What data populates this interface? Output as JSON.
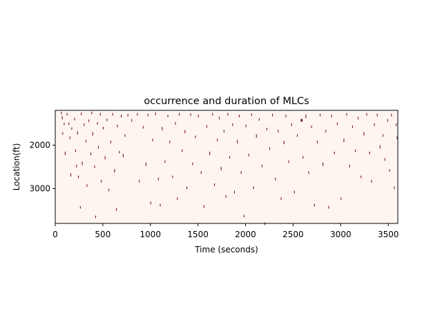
{
  "chart_data": {
    "type": "heatmap",
    "title": "occurrence and duration of MLCs",
    "xlabel": "Time (seconds)",
    "ylabel": "Location(ft)",
    "xlim": [
      0,
      3600
    ],
    "ylim": [
      3800,
      1200
    ],
    "xticks": [
      0,
      500,
      1000,
      1500,
      2000,
      2500,
      3000,
      3500
    ],
    "yticks": [
      2000,
      3000
    ],
    "colors": {
      "background": "#fff5f0",
      "event": "#67000d",
      "axes": "#000000"
    },
    "events": [
      [
        60,
        1230,
        5,
        60
      ],
      [
        70,
        1330,
        5,
        80
      ],
      [
        75,
        1700,
        5,
        60
      ],
      [
        90,
        1480,
        5,
        60
      ],
      [
        100,
        2150,
        5,
        80
      ],
      [
        120,
        1260,
        5,
        60
      ],
      [
        140,
        1480,
        5,
        60
      ],
      [
        150,
        1800,
        5,
        60
      ],
      [
        160,
        2650,
        5,
        70
      ],
      [
        170,
        1590,
        5,
        60
      ],
      [
        200,
        1370,
        5,
        60
      ],
      [
        210,
        2100,
        5,
        60
      ],
      [
        220,
        2450,
        5,
        60
      ],
      [
        230,
        1680,
        5,
        80
      ],
      [
        240,
        2700,
        5,
        60
      ],
      [
        260,
        3400,
        5,
        60
      ],
      [
        270,
        1250,
        5,
        60
      ],
      [
        280,
        2380,
        5,
        80
      ],
      [
        300,
        1500,
        5,
        60
      ],
      [
        320,
        1880,
        5,
        60
      ],
      [
        330,
        2900,
        5,
        60
      ],
      [
        350,
        1410,
        5,
        60
      ],
      [
        370,
        2170,
        5,
        60
      ],
      [
        380,
        1230,
        5,
        60
      ],
      [
        390,
        1700,
        5,
        80
      ],
      [
        410,
        2470,
        5,
        60
      ],
      [
        420,
        3620,
        5,
        60
      ],
      [
        440,
        1470,
        5,
        60
      ],
      [
        450,
        2020,
        5,
        60
      ],
      [
        470,
        1260,
        5,
        60
      ],
      [
        480,
        2800,
        5,
        60
      ],
      [
        500,
        1580,
        5,
        60
      ],
      [
        520,
        2250,
        5,
        80
      ],
      [
        540,
        1390,
        5,
        60
      ],
      [
        560,
        3000,
        5,
        60
      ],
      [
        580,
        1900,
        5,
        60
      ],
      [
        600,
        1260,
        5,
        60
      ],
      [
        620,
        2550,
        5,
        80
      ],
      [
        640,
        3450,
        5,
        60
      ],
      [
        650,
        1530,
        5,
        60
      ],
      [
        670,
        2130,
        5,
        60
      ],
      [
        690,
        1300,
        5,
        60
      ],
      [
        710,
        2200,
        5,
        80
      ],
      [
        730,
        1750,
        5,
        60
      ],
      [
        760,
        1280,
        5,
        60
      ],
      [
        800,
        1400,
        5,
        60
      ],
      [
        860,
        1260,
        5,
        60
      ],
      [
        880,
        2800,
        5,
        60
      ],
      [
        920,
        1560,
        5,
        60
      ],
      [
        950,
        2400,
        5,
        80
      ],
      [
        970,
        1280,
        5,
        60
      ],
      [
        1000,
        3300,
        5,
        60
      ],
      [
        1020,
        1850,
        5,
        60
      ],
      [
        1050,
        1250,
        5,
        60
      ],
      [
        1080,
        2750,
        5,
        60
      ],
      [
        1100,
        3350,
        5,
        60
      ],
      [
        1120,
        1580,
        5,
        80
      ],
      [
        1150,
        2350,
        5,
        60
      ],
      [
        1180,
        1300,
        5,
        60
      ],
      [
        1200,
        1900,
        5,
        60
      ],
      [
        1230,
        2700,
        5,
        60
      ],
      [
        1260,
        1470,
        5,
        60
      ],
      [
        1280,
        3200,
        5,
        60
      ],
      [
        1300,
        1260,
        5,
        60
      ],
      [
        1330,
        2100,
        5,
        60
      ],
      [
        1360,
        1650,
        5,
        80
      ],
      [
        1380,
        2950,
        5,
        60
      ],
      [
        1420,
        1270,
        5,
        60
      ],
      [
        1440,
        2400,
        5,
        60
      ],
      [
        1470,
        1780,
        5,
        60
      ],
      [
        1500,
        1300,
        5,
        60
      ],
      [
        1530,
        2600,
        5,
        60
      ],
      [
        1560,
        3380,
        5,
        60
      ],
      [
        1590,
        1540,
        5,
        60
      ],
      [
        1620,
        2150,
        5,
        80
      ],
      [
        1650,
        1260,
        5,
        60
      ],
      [
        1670,
        2880,
        5,
        60
      ],
      [
        1700,
        1850,
        5,
        60
      ],
      [
        1720,
        1350,
        5,
        60
      ],
      [
        1740,
        2500,
        5,
        80
      ],
      [
        1770,
        1650,
        5,
        60
      ],
      [
        1790,
        3150,
        5,
        60
      ],
      [
        1810,
        1260,
        5,
        60
      ],
      [
        1830,
        2250,
        5,
        60
      ],
      [
        1860,
        1500,
        5,
        60
      ],
      [
        1880,
        3050,
        5,
        60
      ],
      [
        1910,
        1880,
        5,
        80
      ],
      [
        1930,
        1300,
        5,
        60
      ],
      [
        1950,
        2600,
        5,
        60
      ],
      [
        1980,
        3600,
        5,
        60
      ],
      [
        2000,
        1530,
        5,
        60
      ],
      [
        2030,
        2200,
        5,
        60
      ],
      [
        2060,
        1270,
        5,
        60
      ],
      [
        2080,
        2950,
        5,
        60
      ],
      [
        2110,
        1750,
        5,
        80
      ],
      [
        2140,
        1380,
        5,
        60
      ],
      [
        2170,
        2450,
        5,
        60
      ],
      [
        2200,
        3780,
        5,
        60
      ],
      [
        2220,
        1600,
        5,
        60
      ],
      [
        2250,
        2050,
        5,
        60
      ],
      [
        2280,
        1280,
        5,
        60
      ],
      [
        2310,
        2750,
        5,
        60
      ],
      [
        2340,
        1650,
        5,
        60
      ],
      [
        2370,
        3200,
        5,
        60
      ],
      [
        2400,
        1900,
        5,
        80
      ],
      [
        2420,
        1300,
        5,
        60
      ],
      [
        2450,
        2350,
        5,
        60
      ],
      [
        2480,
        1500,
        5,
        60
      ],
      [
        2510,
        3050,
        5,
        60
      ],
      [
        2540,
        1750,
        5,
        60
      ],
      [
        2580,
        1400,
        18,
        60
      ],
      [
        2600,
        2250,
        5,
        60
      ],
      [
        2630,
        1300,
        5,
        80
      ],
      [
        2660,
        2600,
        5,
        60
      ],
      [
        2690,
        1550,
        5,
        60
      ],
      [
        2720,
        3350,
        5,
        60
      ],
      [
        2750,
        1900,
        5,
        60
      ],
      [
        2780,
        1280,
        5,
        60
      ],
      [
        2810,
        2400,
        5,
        80
      ],
      [
        2840,
        1650,
        5,
        60
      ],
      [
        2870,
        3400,
        5,
        60
      ],
      [
        2900,
        1300,
        5,
        60
      ],
      [
        2930,
        2150,
        5,
        60
      ],
      [
        2960,
        1480,
        5,
        60
      ],
      [
        3000,
        3200,
        5,
        60
      ],
      [
        3030,
        1850,
        5,
        80
      ],
      [
        3060,
        1260,
        5,
        60
      ],
      [
        3090,
        2450,
        5,
        60
      ],
      [
        3120,
        1550,
        5,
        60
      ],
      [
        3150,
        2100,
        5,
        60
      ],
      [
        3180,
        1350,
        5,
        60
      ],
      [
        3210,
        2700,
        5,
        60
      ],
      [
        3240,
        1700,
        5,
        80
      ],
      [
        3270,
        1260,
        5,
        60
      ],
      [
        3300,
        2150,
        5,
        60
      ],
      [
        3320,
        2800,
        5,
        60
      ],
      [
        3350,
        1500,
        5,
        60
      ],
      [
        3380,
        1280,
        5,
        60
      ],
      [
        3410,
        2000,
        5,
        80
      ],
      [
        3440,
        1750,
        5,
        60
      ],
      [
        3460,
        2300,
        5,
        60
      ],
      [
        3490,
        1400,
        5,
        60
      ],
      [
        3510,
        2550,
        5,
        60
      ],
      [
        3530,
        1280,
        5,
        60
      ],
      [
        3560,
        2950,
        5,
        60
      ],
      [
        3580,
        1500,
        5,
        60
      ],
      [
        3590,
        1800,
        5,
        60
      ]
    ]
  }
}
